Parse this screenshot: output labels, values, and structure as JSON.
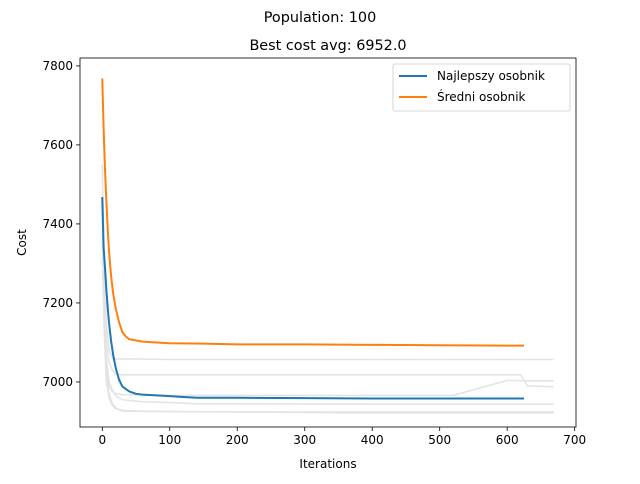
{
  "figure": {
    "suptitle": "Population: 100",
    "title": "Best cost avg: 6952.0"
  },
  "chart_data": {
    "type": "line",
    "title": "Best cost avg: 6952.0",
    "suptitle": "Population: 100",
    "xlabel": "Iterations",
    "ylabel": "Cost",
    "xlim": [
      -33,
      702
    ],
    "ylim": [
      6886,
      7820
    ],
    "xticks": [
      0,
      100,
      200,
      300,
      400,
      500,
      600,
      700
    ],
    "yticks": [
      7000,
      7200,
      7400,
      7600,
      7800
    ],
    "grid": false,
    "legend_position": "top-right",
    "colors": {
      "best": "#1f77b4",
      "average": "#ff7f0e",
      "background_runs": "#e3e3e3"
    },
    "series": [
      {
        "name": "Najlepszy osobnik",
        "role": "best",
        "x": [
          0,
          2,
          4,
          6,
          8,
          10,
          13,
          16,
          20,
          25,
          30,
          35,
          40,
          50,
          60,
          80,
          100,
          120,
          140,
          200,
          300,
          400,
          500,
          625
        ],
        "y": [
          7468,
          7340,
          7290,
          7235,
          7190,
          7150,
          7105,
          7070,
          7035,
          7005,
          6988,
          6982,
          6976,
          6970,
          6968,
          6966,
          6964,
          6962,
          6960,
          6960,
          6959,
          6958,
          6958,
          6958
        ]
      },
      {
        "name": "Średni osobnik",
        "role": "average",
        "x": [
          0,
          2,
          4,
          6,
          8,
          10,
          13,
          16,
          20,
          25,
          30,
          35,
          40,
          50,
          60,
          80,
          100,
          150,
          200,
          300,
          400,
          500,
          600,
          625
        ],
        "y": [
          7768,
          7640,
          7540,
          7460,
          7390,
          7330,
          7270,
          7225,
          7185,
          7150,
          7125,
          7115,
          7108,
          7105,
          7102,
          7100,
          7098,
          7097,
          7095,
          7095,
          7094,
          7093,
          7092,
          7092
        ]
      },
      {
        "name": "",
        "role": "background",
        "x": [
          0,
          3,
          6,
          10,
          15,
          20,
          30,
          50,
          100,
          300,
          669
        ],
        "y": [
          7550,
          7300,
          7150,
          7080,
          7060,
          7058,
          7058,
          7058,
          7057,
          7057,
          7057
        ]
      },
      {
        "name": "",
        "role": "background",
        "x": [
          0,
          3,
          6,
          10,
          15,
          20,
          30,
          100,
          300,
          500,
          620,
          630,
          669
        ],
        "y": [
          7440,
          7250,
          7100,
          7050,
          7030,
          7020,
          7018,
          7018,
          7018,
          7018,
          7018,
          6990,
          6988
        ]
      },
      {
        "name": "",
        "role": "background",
        "x": [
          0,
          3,
          6,
          10,
          15,
          20,
          30,
          60,
          100,
          140,
          200,
          400,
          669
        ],
        "y": [
          7410,
          7200,
          7060,
          7000,
          6980,
          6965,
          6955,
          6950,
          6948,
          6945,
          6945,
          6944,
          6944
        ]
      },
      {
        "name": "",
        "role": "background",
        "x": [
          0,
          3,
          6,
          10,
          15,
          20,
          25,
          30,
          100,
          300,
          669
        ],
        "y": [
          7380,
          7150,
          7020,
          6970,
          6945,
          6935,
          6930,
          6926,
          6925,
          6924,
          6924
        ]
      },
      {
        "name": "",
        "role": "background",
        "x": [
          0,
          3,
          6,
          10,
          15,
          20,
          30,
          60,
          360,
          669
        ],
        "y": [
          7350,
          7120,
          7000,
          6960,
          6940,
          6932,
          6928,
          6926,
          6922,
          6922
        ]
      },
      {
        "name": "",
        "role": "background",
        "x": [
          0,
          3,
          6,
          10,
          15,
          20,
          30,
          100,
          300,
          520,
          600,
          625,
          669
        ],
        "y": [
          7320,
          7130,
          7030,
          6990,
          6975,
          6970,
          6968,
          6966,
          6966,
          6966,
          7004,
          7003,
          7003
        ]
      }
    ]
  }
}
